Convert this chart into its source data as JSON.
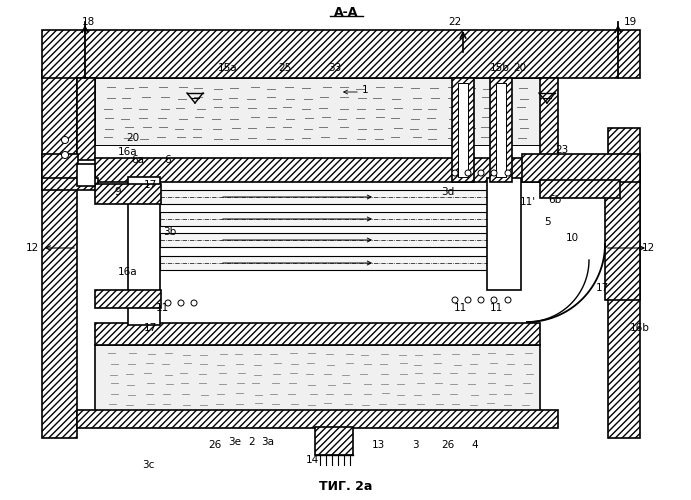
{
  "title_top": "A-A",
  "title_bottom": "ΤИГ. 2a",
  "bg_color": "#ffffff",
  "line_color": "#000000",
  "labels": [
    [
      "1",
      365,
      410
    ],
    [
      "2",
      252,
      58
    ],
    [
      "3",
      415,
      55
    ],
    [
      "3a",
      268,
      58
    ],
    [
      "3b",
      170,
      268
    ],
    [
      "3c",
      148,
      35
    ],
    [
      "3d",
      448,
      308
    ],
    [
      "3e",
      235,
      58
    ],
    [
      "4",
      475,
      55
    ],
    [
      "5",
      548,
      278
    ],
    [
      "6",
      168,
      340
    ],
    [
      "6a",
      138,
      340
    ],
    [
      "6b",
      555,
      300
    ],
    [
      "9",
      118,
      308
    ],
    [
      "10",
      572,
      262
    ],
    [
      "11",
      162,
      192
    ],
    [
      "11",
      460,
      192
    ],
    [
      "11",
      496,
      192
    ],
    [
      "11'",
      528,
      298
    ],
    [
      "12",
      32,
      252
    ],
    [
      "12",
      648,
      252
    ],
    [
      "13",
      378,
      55
    ],
    [
      "14",
      312,
      40
    ],
    [
      "15a",
      228,
      432
    ],
    [
      "15b",
      500,
      432
    ],
    [
      "16a",
      128,
      228
    ],
    [
      "16a",
      128,
      348
    ],
    [
      "16b",
      640,
      172
    ],
    [
      "17",
      150,
      172
    ],
    [
      "17",
      602,
      212
    ],
    [
      "17",
      150,
      315
    ],
    [
      "18",
      88,
      478
    ],
    [
      "19",
      630,
      478
    ],
    [
      "20",
      520,
      432
    ],
    [
      "20",
      133,
      362
    ],
    [
      "22",
      455,
      478
    ],
    [
      "23",
      562,
      350
    ],
    [
      "25",
      285,
      432
    ],
    [
      "26",
      215,
      55
    ],
    [
      "26",
      448,
      55
    ],
    [
      "33",
      335,
      432
    ]
  ]
}
